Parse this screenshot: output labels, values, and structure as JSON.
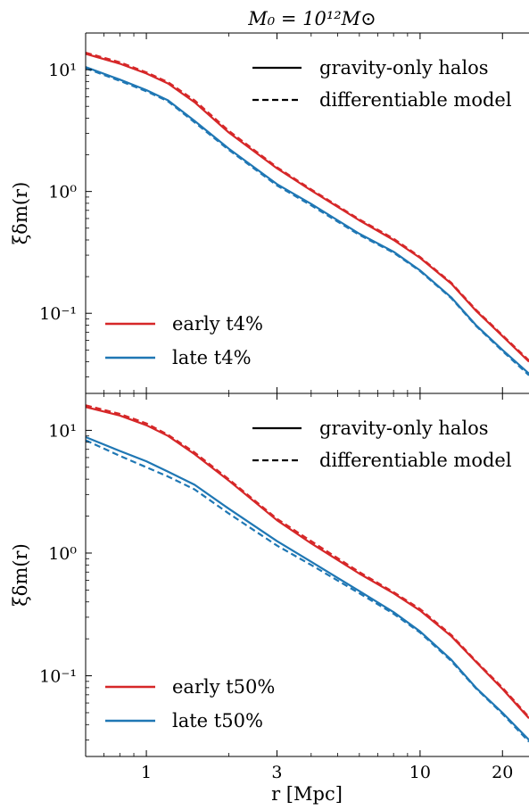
{
  "figure": {
    "title": "M₀ = 10¹²M⊙",
    "xlabel": "r [Mpc]"
  },
  "chart_data": [
    {
      "type": "line",
      "panel": "top",
      "ylabel": "ξδm(r)",
      "xscale": "log",
      "yscale": "log",
      "xlim": [
        0.6,
        25
      ],
      "ylim": [
        0.022,
        20
      ],
      "x_ticks": [
        1,
        3,
        10,
        20
      ],
      "x_tick_labels": [
        "",
        "",
        "",
        ""
      ],
      "y_ticks": [
        0.1,
        1,
        10
      ],
      "y_tick_labels": [
        "10⁻¹",
        "10⁰",
        "10¹"
      ],
      "style_legend": {
        "position": "top-right",
        "entries": [
          {
            "label": "gravity-only halos",
            "style": "solid"
          },
          {
            "label": "differentiable model",
            "style": "dashed"
          }
        ]
      },
      "color_legend": {
        "position": "bottom-left",
        "entries": [
          {
            "label": "early t4%",
            "color": "#d62728"
          },
          {
            "label": "late t4%",
            "color": "#1f77b4"
          }
        ]
      },
      "x": [
        0.6,
        0.8,
        1.0,
        1.2,
        1.5,
        2.0,
        3.0,
        4.0,
        6.0,
        8.0,
        10.0,
        13.0,
        16.0,
        20.0,
        25.0
      ],
      "series": [
        {
          "name": "early t4%",
          "color": "#d62728",
          "style": "solid",
          "values": [
            13.5,
            11.2,
            9.3,
            7.7,
            5.4,
            3.05,
            1.55,
            1.02,
            0.58,
            0.4,
            0.285,
            0.175,
            0.105,
            0.065,
            0.04
          ]
        },
        {
          "name": "early t4%",
          "color": "#d62728",
          "style": "dashed",
          "values": [
            13.8,
            11.5,
            9.5,
            7.9,
            5.6,
            3.15,
            1.58,
            1.04,
            0.59,
            0.41,
            0.29,
            0.178,
            0.107,
            0.066,
            0.041
          ]
        },
        {
          "name": "late t4%",
          "color": "#1f77b4",
          "style": "solid",
          "values": [
            10.5,
            8.3,
            6.8,
            5.6,
            3.8,
            2.25,
            1.15,
            0.79,
            0.45,
            0.32,
            0.225,
            0.135,
            0.08,
            0.05,
            0.032
          ]
        },
        {
          "name": "late t4%",
          "color": "#1f77b4",
          "style": "dashed",
          "values": [
            10.3,
            8.1,
            6.65,
            5.5,
            3.7,
            2.2,
            1.12,
            0.77,
            0.44,
            0.315,
            0.222,
            0.133,
            0.079,
            0.049,
            0.031
          ]
        }
      ]
    },
    {
      "type": "line",
      "panel": "bottom",
      "ylabel": "ξδm(r)",
      "xscale": "log",
      "yscale": "log",
      "xlim": [
        0.6,
        25
      ],
      "ylim": [
        0.022,
        20
      ],
      "x_ticks": [
        1,
        3,
        10,
        20
      ],
      "x_tick_labels": [
        "1",
        "3",
        "10",
        "20"
      ],
      "y_ticks": [
        0.1,
        1,
        10
      ],
      "y_tick_labels": [
        "10⁻¹",
        "10⁰",
        "10¹"
      ],
      "style_legend": {
        "position": "top-right",
        "entries": [
          {
            "label": "gravity-only halos",
            "style": "solid"
          },
          {
            "label": "differentiable model",
            "style": "dashed"
          }
        ]
      },
      "color_legend": {
        "position": "bottom-left",
        "entries": [
          {
            "label": "early t50%",
            "color": "#d62728"
          },
          {
            "label": "late t50%",
            "color": "#1f77b4"
          }
        ]
      },
      "x": [
        0.6,
        0.8,
        1.0,
        1.2,
        1.5,
        2.0,
        3.0,
        4.0,
        6.0,
        8.0,
        10.0,
        13.0,
        16.0,
        20.0,
        25.0
      ],
      "series": [
        {
          "name": "early t50%",
          "color": "#d62728",
          "style": "solid",
          "values": [
            15.5,
            13.2,
            11.0,
            9.0,
            6.4,
            3.9,
            1.85,
            1.2,
            0.68,
            0.47,
            0.34,
            0.21,
            0.13,
            0.078,
            0.045
          ]
        },
        {
          "name": "early t50%",
          "color": "#d62728",
          "style": "dashed",
          "values": [
            16.0,
            13.6,
            11.4,
            9.2,
            6.6,
            4.0,
            1.9,
            1.25,
            0.7,
            0.48,
            0.35,
            0.215,
            0.132,
            0.08,
            0.046
          ]
        },
        {
          "name": "late t50%",
          "color": "#1f77b4",
          "style": "solid",
          "values": [
            8.8,
            6.8,
            5.6,
            4.6,
            3.6,
            2.3,
            1.25,
            0.85,
            0.49,
            0.33,
            0.23,
            0.135,
            0.08,
            0.05,
            0.03
          ]
        },
        {
          "name": "late t50%",
          "color": "#1f77b4",
          "style": "dashed",
          "values": [
            8.3,
            6.2,
            5.0,
            4.2,
            3.3,
            2.1,
            1.15,
            0.8,
            0.47,
            0.32,
            0.225,
            0.132,
            0.079,
            0.049,
            0.029
          ]
        }
      ]
    }
  ]
}
